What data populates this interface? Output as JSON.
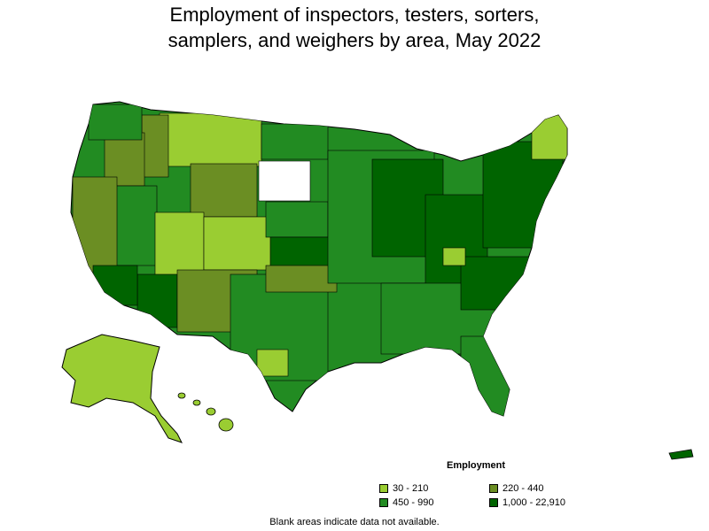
{
  "title_line1": "Employment of inspectors, testers, sorters,",
  "title_line2": "samplers, and weighers by area, May 2022",
  "legend": {
    "title": "Employment",
    "items": [
      {
        "label": "30 - 210",
        "color": "#9acd32"
      },
      {
        "label": "220 - 440",
        "color": "#6b8e23"
      },
      {
        "label": "450 - 990",
        "color": "#228b22"
      },
      {
        "label": "1,000 - 22,910",
        "color": "#006400"
      }
    ]
  },
  "footnote": "Blank areas indicate data not available."
}
